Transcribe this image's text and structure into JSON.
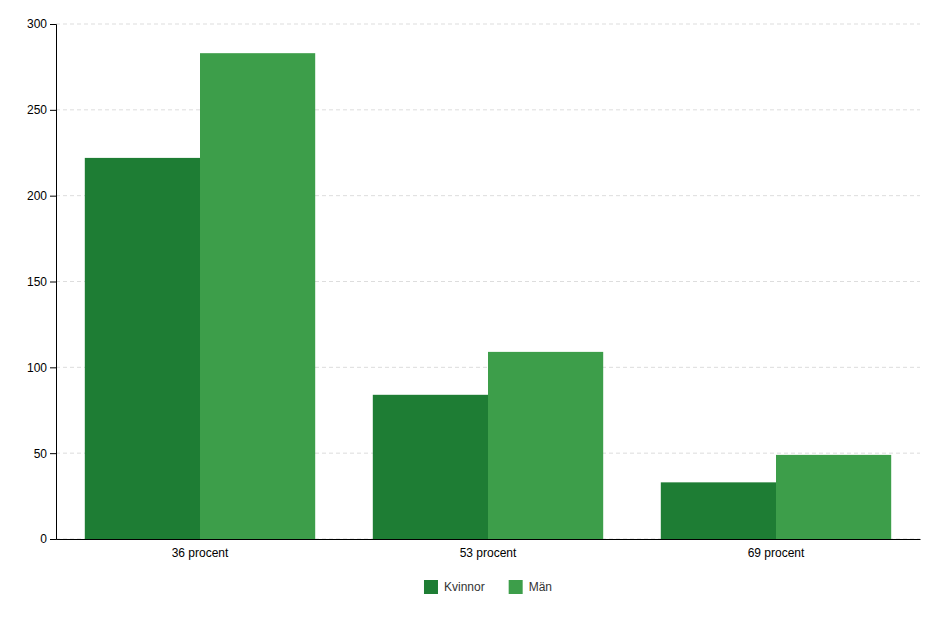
{
  "chart_data": {
    "type": "bar",
    "categories": [
      "36 procent",
      "53 procent",
      "69 procent"
    ],
    "series": [
      {
        "name": "Kvinnor",
        "color": "#1e7d34",
        "values": [
          222,
          84,
          33
        ]
      },
      {
        "name": "Män",
        "color": "#3d9e4a",
        "values": [
          283,
          109,
          49
        ]
      }
    ],
    "ylim": [
      0,
      300
    ],
    "yticks": [
      0,
      50,
      100,
      150,
      200,
      250,
      300
    ],
    "grid": true,
    "legend": "bottom"
  }
}
